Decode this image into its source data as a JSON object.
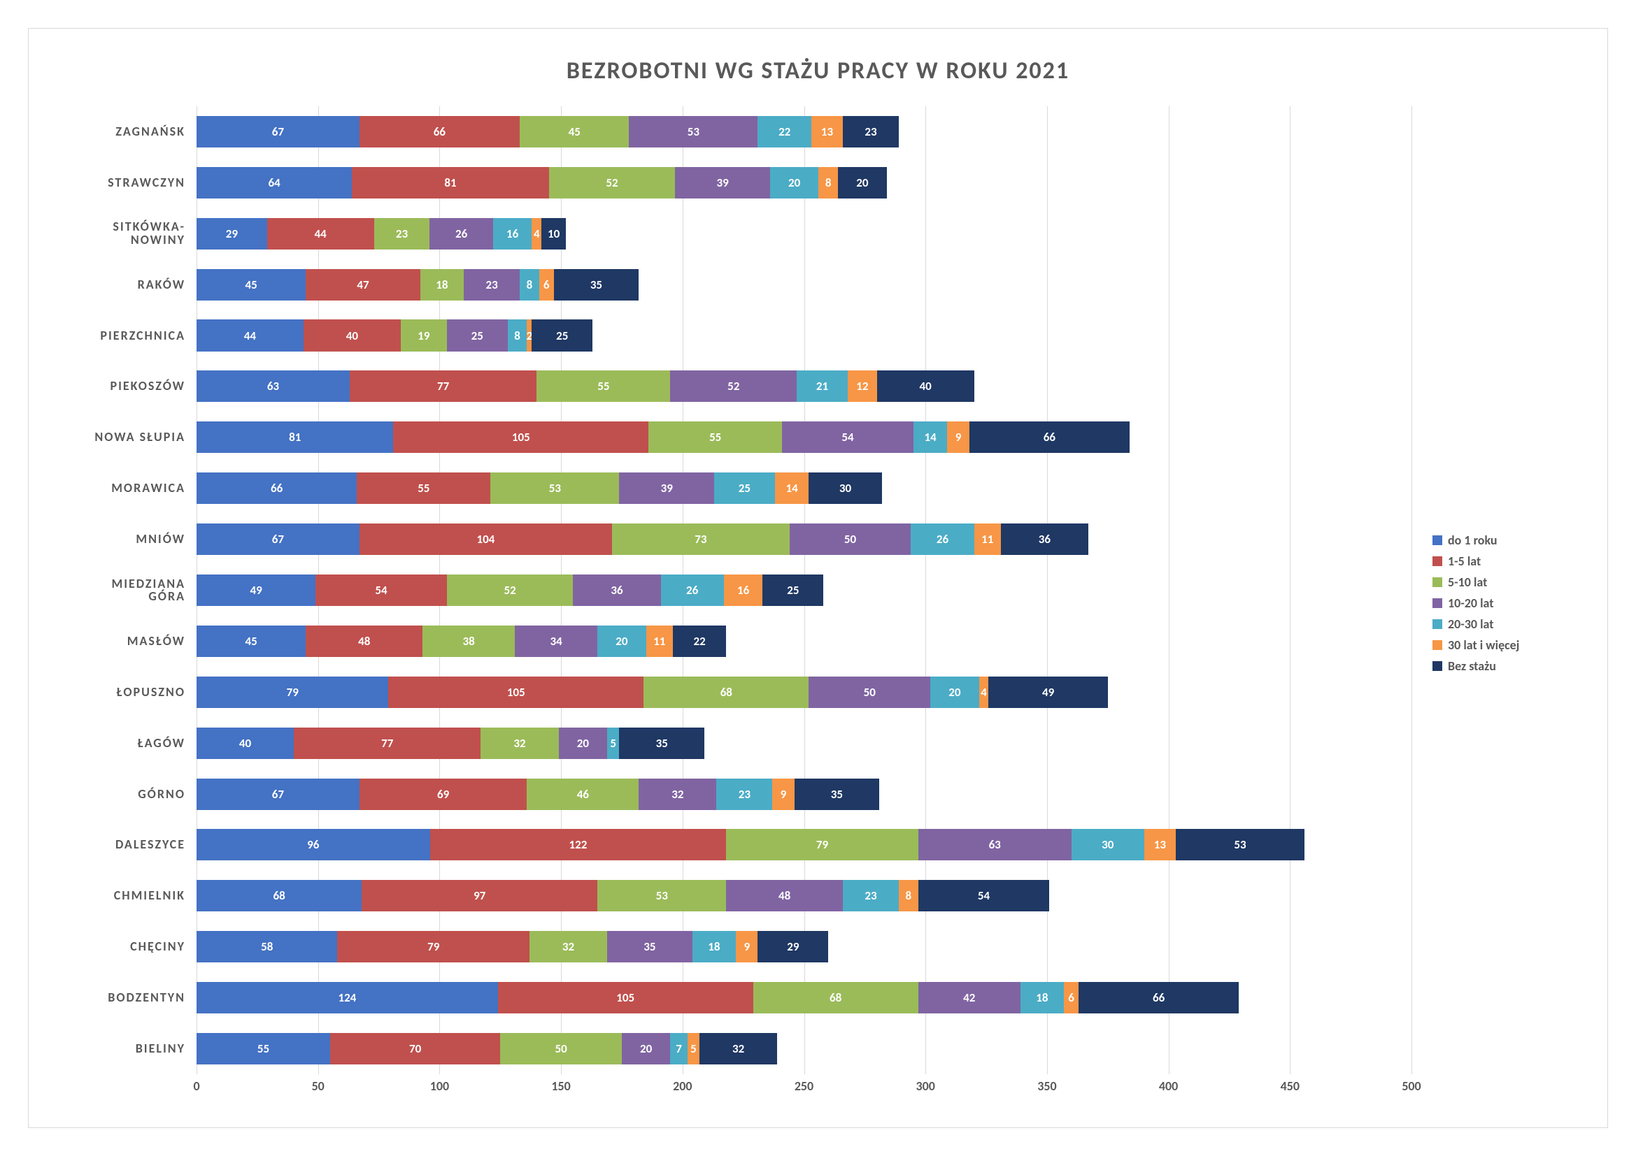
{
  "chart": {
    "type": "stacked-horizontal-bar",
    "title": "BEZROBOTNI WG STAŻU PRACY W ROKU 2021",
    "title_fontsize": 34,
    "title_color": "#595959",
    "background_color": "#ffffff",
    "frame_border_color": "#d9d9d9",
    "grid_color": "#d9d9d9",
    "label_color": "#595959",
    "label_fontsize": 18,
    "segment_label_color": "#ffffff",
    "segment_label_fontsize": 17,
    "x_axis": {
      "xlim": [
        0,
        500
      ],
      "tick_step": 50,
      "ticks": [
        0,
        50,
        100,
        150,
        200,
        250,
        300,
        350,
        400,
        450,
        500
      ]
    },
    "series": [
      {
        "key": "do_1_roku",
        "label": "do 1 roku",
        "color": "#4472c4"
      },
      {
        "key": "lat_1_5",
        "label": "1-5 lat",
        "color": "#c0504d"
      },
      {
        "key": "lat_5_10",
        "label": "5-10 lat",
        "color": "#9bbb59"
      },
      {
        "key": "lat_10_20",
        "label": "10-20 lat",
        "color": "#8064a2"
      },
      {
        "key": "lat_20_30",
        "label": "20-30 lat",
        "color": "#4bacc6"
      },
      {
        "key": "lat_30_plus",
        "label": "30 lat i więcej",
        "color": "#f79646"
      },
      {
        "key": "bez_stazu",
        "label": "Bez stażu",
        "color": "#1f3864"
      }
    ],
    "categories": [
      {
        "label": "ZAGNAŃSK",
        "values": [
          67,
          66,
          45,
          53,
          22,
          13,
          23
        ]
      },
      {
        "label": "STRAWCZYN",
        "values": [
          64,
          81,
          52,
          39,
          20,
          8,
          20
        ]
      },
      {
        "label": "SITKÓWKA-\nNOWINY",
        "values": [
          29,
          44,
          23,
          26,
          16,
          4,
          10
        ]
      },
      {
        "label": "RAKÓW",
        "values": [
          45,
          47,
          18,
          23,
          8,
          6,
          35
        ]
      },
      {
        "label": "PIERZCHNICA",
        "values": [
          44,
          40,
          19,
          25,
          8,
          2,
          25
        ]
      },
      {
        "label": "PIEKOSZÓW",
        "values": [
          63,
          77,
          55,
          52,
          21,
          12,
          40
        ]
      },
      {
        "label": "NOWA SŁUPIA",
        "values": [
          81,
          105,
          55,
          54,
          14,
          9,
          66
        ]
      },
      {
        "label": "MORAWICA",
        "values": [
          66,
          55,
          53,
          39,
          25,
          14,
          30
        ]
      },
      {
        "label": "MNIÓW",
        "values": [
          67,
          104,
          73,
          50,
          26,
          11,
          36
        ]
      },
      {
        "label": "MIEDZIANA\nGÓRA",
        "values": [
          49,
          54,
          52,
          36,
          26,
          16,
          25
        ]
      },
      {
        "label": "MASŁÓW",
        "values": [
          45,
          48,
          38,
          34,
          20,
          11,
          22
        ]
      },
      {
        "label": "ŁOPUSZNO",
        "values": [
          79,
          105,
          68,
          50,
          20,
          4,
          49
        ]
      },
      {
        "label": "ŁAGÓW",
        "values": [
          40,
          77,
          32,
          20,
          5,
          0,
          35
        ]
      },
      {
        "label": "GÓRNO",
        "values": [
          67,
          69,
          46,
          32,
          23,
          9,
          35
        ]
      },
      {
        "label": "DALESZYCE",
        "values": [
          96,
          122,
          79,
          63,
          30,
          13,
          53
        ]
      },
      {
        "label": "CHMIELNIK",
        "values": [
          68,
          97,
          53,
          48,
          23,
          8,
          54
        ]
      },
      {
        "label": "CHĘCINY",
        "values": [
          58,
          79,
          32,
          35,
          18,
          9,
          29
        ]
      },
      {
        "label": "BODZENTYN",
        "values": [
          124,
          105,
          68,
          42,
          18,
          6,
          66
        ]
      },
      {
        "label": "BIELINY",
        "values": [
          55,
          70,
          50,
          20,
          7,
          5,
          32
        ]
      }
    ]
  }
}
